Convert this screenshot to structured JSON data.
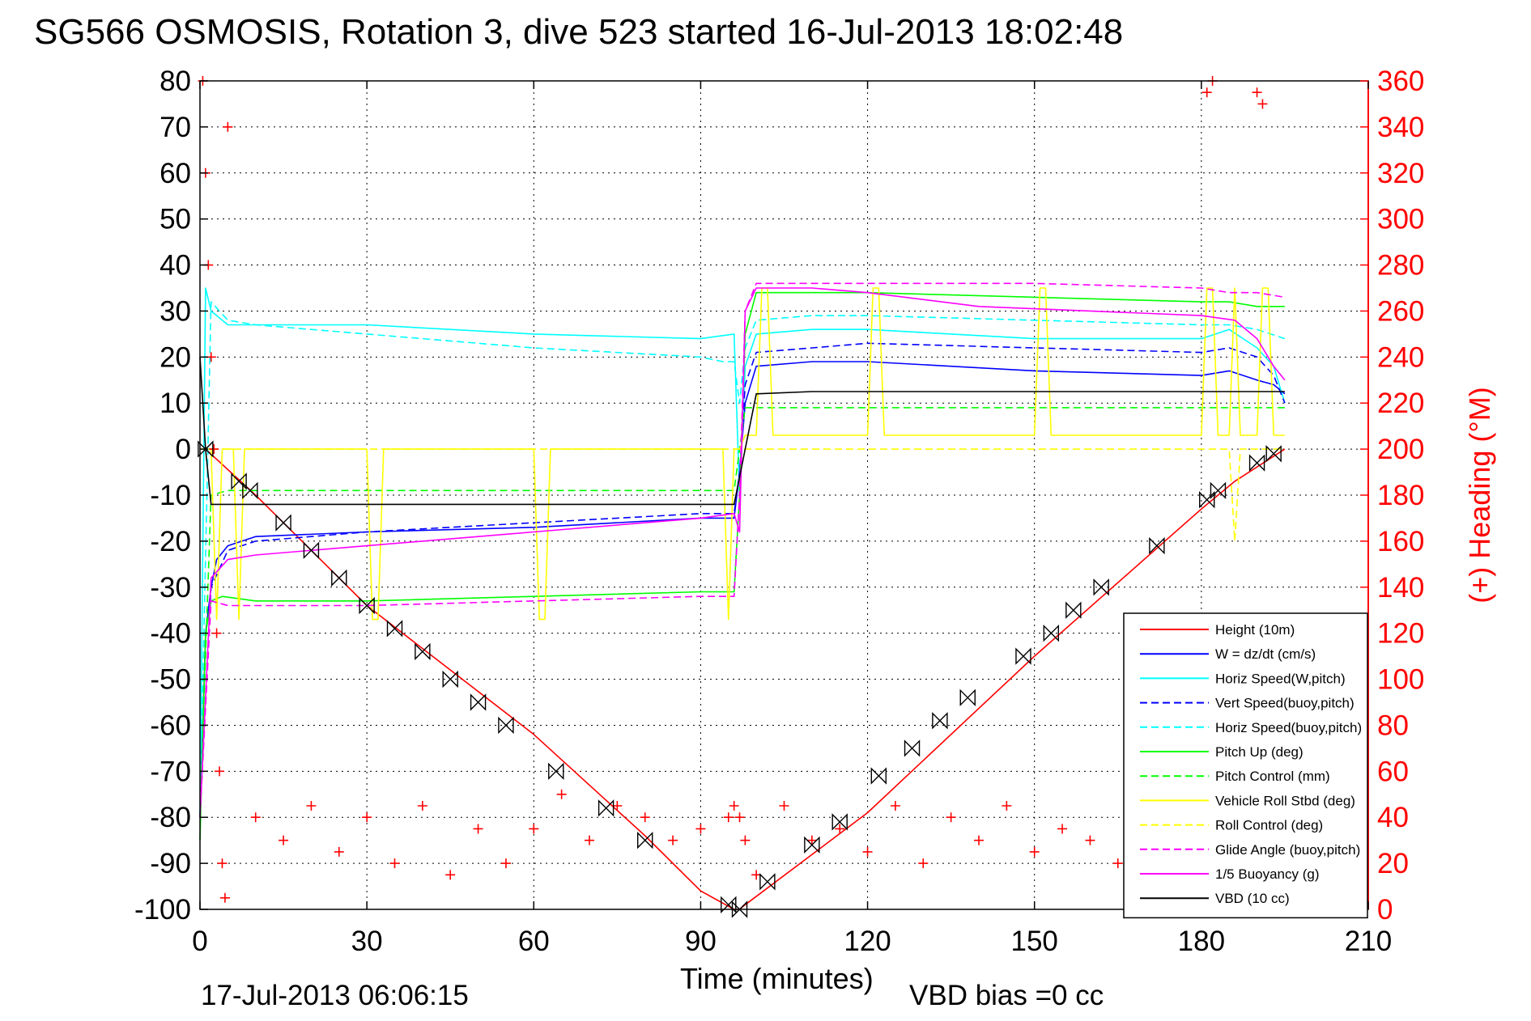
{
  "chart_data": {
    "type": "line",
    "title": "SG566 OSMOSIS, Rotation 3, dive 523 started 16-Jul-2013 18:02:48",
    "xlabel": "Time (minutes)",
    "ylabel": "",
    "y2label": "(+) Heading (°M)",
    "xlim": [
      0,
      210
    ],
    "ylim": [
      -100,
      80
    ],
    "y2lim": [
      0,
      360
    ],
    "xticks": [
      "0",
      "30",
      "60",
      "90",
      "120",
      "150",
      "180",
      "210"
    ],
    "yticks": [
      "80",
      "70",
      "60",
      "50",
      "40",
      "30",
      "20",
      "10",
      "0",
      "-10",
      "-20",
      "-30",
      "-40",
      "-50",
      "-60",
      "-70",
      "-80",
      "-90",
      "-100"
    ],
    "y2ticks": [
      "360",
      "340",
      "320",
      "300",
      "280",
      "260",
      "240",
      "220",
      "200",
      "180",
      "160",
      "140",
      "120",
      "100",
      "80",
      "60",
      "40",
      "20",
      "0"
    ],
    "grid": true,
    "legend_position": "bottom-right",
    "footer_left": "17-Jul-2013 06:06:15",
    "footer_right": "VBD bias =0 cc",
    "series": [
      {
        "name": "Height (10m)",
        "color": "#ff0000",
        "style": "solid",
        "x": [
          0,
          1,
          10,
          30,
          60,
          80,
          90,
          96,
          97,
          98,
          120,
          150,
          180,
          186,
          195
        ],
        "y": [
          0,
          0,
          -10,
          -34,
          -62,
          -84,
          -96,
          -100,
          -100,
          -99,
          -79,
          -45,
          -13,
          -7,
          0
        ]
      },
      {
        "name": "W = dz/dt (cm/s)",
        "color": "#0000ff",
        "style": "solid",
        "x": [
          0,
          1,
          2,
          3,
          5,
          10,
          30,
          60,
          90,
          96,
          97,
          98,
          100,
          110,
          120,
          150,
          180,
          185,
          190,
          193,
          195
        ],
        "y": [
          -80,
          -40,
          -30,
          -24,
          -21,
          -19,
          -18,
          -17,
          -15,
          -15,
          -5,
          10,
          18,
          19,
          19,
          17,
          16,
          17,
          15,
          14,
          12
        ]
      },
      {
        "name": "Horiz Speed(W,pitch)",
        "color": "#00ffff",
        "style": "solid",
        "x": [
          0,
          1,
          2,
          5,
          10,
          30,
          60,
          90,
          96,
          97,
          98,
          100,
          110,
          120,
          150,
          180,
          185,
          190,
          193,
          195
        ],
        "y": [
          -80,
          35,
          30,
          27,
          27,
          27,
          25,
          24,
          25,
          -10,
          18,
          25,
          26,
          26,
          24,
          24,
          26,
          22,
          18,
          10
        ]
      },
      {
        "name": "Vert Speed(buoy,pitch)",
        "color": "#0000ff",
        "style": "dashed",
        "x": [
          0,
          2,
          5,
          10,
          30,
          60,
          90,
          96,
          97,
          98,
          100,
          110,
          120,
          150,
          180,
          185,
          190,
          193,
          195
        ],
        "y": [
          -80,
          -30,
          -22,
          -20,
          -18,
          -16,
          -14,
          -14,
          -5,
          14,
          21,
          22,
          23,
          22,
          21,
          22,
          20,
          16,
          10
        ]
      },
      {
        "name": "Horiz Speed(buoy,pitch)",
        "color": "#00ffff",
        "style": "dashed",
        "x": [
          0,
          2,
          5,
          10,
          30,
          60,
          90,
          94,
          96,
          97,
          98,
          100,
          110,
          120,
          150,
          180,
          185,
          190,
          195
        ],
        "y": [
          -80,
          32,
          28,
          27,
          25,
          22,
          20,
          19,
          19,
          10,
          22,
          28,
          29,
          29,
          28,
          27,
          27,
          26,
          24
        ]
      },
      {
        "name": "Pitch Up (deg)",
        "color": "#00ff00",
        "style": "solid",
        "x": [
          0,
          1,
          2,
          4,
          10,
          30,
          60,
          90,
          96,
          97,
          98,
          100,
          110,
          120,
          150,
          180,
          185,
          190,
          195
        ],
        "y": [
          -85,
          -40,
          -33,
          -32,
          -33,
          -33,
          -32,
          -31,
          -31,
          -10,
          25,
          34,
          34,
          34,
          33,
          32,
          32,
          31,
          31
        ]
      },
      {
        "name": "Pitch Control (mm)",
        "color": "#00ff00",
        "style": "dashed",
        "x": [
          0,
          2,
          5,
          10,
          30,
          60,
          90,
          96,
          97,
          98,
          100,
          120,
          150,
          180,
          195
        ],
        "y": [
          -80,
          -10,
          -9,
          -9,
          -9,
          -9,
          -9,
          -9,
          0,
          9,
          9,
          9,
          9,
          9,
          9
        ]
      },
      {
        "name": "Vehicle Roll Stbd (deg)",
        "color": "#ffff00",
        "style": "solid",
        "x": [
          0,
          2,
          3,
          4,
          6,
          7,
          8,
          9,
          30,
          31,
          32,
          33,
          60,
          61,
          62,
          63,
          90,
          94,
          95,
          96,
          97,
          98,
          100,
          101,
          102,
          103,
          120,
          121,
          122,
          123,
          150,
          151,
          152,
          153,
          180,
          181,
          182,
          183,
          185,
          186,
          187,
          190,
          191,
          192,
          193,
          195
        ],
        "y": [
          0,
          0,
          -37,
          0,
          0,
          -37,
          0,
          0,
          0,
          -37,
          -37,
          0,
          0,
          -37,
          -37,
          0,
          0,
          0,
          -37,
          0,
          0,
          3,
          3,
          35,
          35,
          3,
          3,
          35,
          35,
          3,
          3,
          35,
          35,
          3,
          3,
          35,
          35,
          3,
          3,
          35,
          3,
          3,
          35,
          35,
          3,
          3
        ]
      },
      {
        "name": "Roll Control (deg)",
        "color": "#ffff00",
        "style": "dashed",
        "x": [
          0,
          2,
          5,
          10,
          30,
          60,
          90,
          96,
          97,
          98,
          100,
          120,
          150,
          180,
          185,
          186,
          187,
          195
        ],
        "y": [
          0,
          0,
          0,
          0,
          0,
          0,
          0,
          0,
          0,
          0,
          0,
          0,
          0,
          0,
          0,
          -20,
          0,
          0
        ]
      },
      {
        "name": "Glide Angle (buoy,pitch)",
        "color": "#ff00ff",
        "style": "dashed",
        "x": [
          0,
          2,
          5,
          10,
          30,
          60,
          90,
          96,
          97,
          98,
          100,
          110,
          120,
          150,
          180,
          185,
          190,
          195
        ],
        "y": [
          -80,
          -33,
          -34,
          -34,
          -34,
          -33,
          -32,
          -32,
          -10,
          30,
          36,
          36,
          36,
          36,
          35,
          34,
          34,
          33
        ]
      },
      {
        "name": "1/5 Buoyancy (g)",
        "color": "#ff00ff",
        "style": "solid",
        "x": [
          0,
          2,
          5,
          10,
          30,
          60,
          90,
          96,
          97,
          98,
          100,
          110,
          120,
          140,
          160,
          180,
          186,
          190,
          193,
          195
        ],
        "y": [
          -80,
          -28,
          -24,
          -23,
          -21,
          -18,
          -15,
          -14,
          -18,
          30,
          35,
          35,
          34,
          31,
          30,
          29,
          28,
          24,
          18,
          15
        ]
      },
      {
        "name": "VBD (10 cc)",
        "color": "#000000",
        "style": "solid",
        "x": [
          0,
          1,
          2,
          5,
          30,
          60,
          90,
          96,
          98,
          100,
          110,
          150,
          180,
          195
        ],
        "y": [
          20,
          0,
          -12,
          -12,
          -12,
          -12,
          -12,
          -12,
          0,
          12,
          12.5,
          12.5,
          12.5,
          12.5
        ]
      }
    ],
    "heading_series": {
      "name": "Heading",
      "color": "#ff0000",
      "marker": "+",
      "axis": "right",
      "x": [
        0.5,
        1,
        1.5,
        2,
        2.5,
        3,
        3.5,
        4,
        4.5,
        5,
        10,
        15,
        20,
        25,
        30,
        35,
        40,
        45,
        50,
        55,
        60,
        65,
        70,
        75,
        80,
        85,
        90,
        95,
        96,
        97,
        98,
        100,
        105,
        110,
        115,
        120,
        125,
        130,
        135,
        140,
        145,
        150,
        155,
        160,
        165,
        170,
        175,
        178,
        180,
        181,
        182,
        185,
        190,
        191
      ],
      "y": [
        360,
        320,
        280,
        240,
        200,
        120,
        60,
        20,
        5,
        340,
        40,
        30,
        45,
        25,
        40,
        20,
        45,
        15,
        35,
        20,
        35,
        50,
        30,
        45,
        40,
        30,
        35,
        40,
        45,
        40,
        30,
        15,
        45,
        30,
        35,
        25,
        45,
        20,
        40,
        30,
        45,
        25,
        35,
        30,
        20,
        40,
        30,
        15,
        5,
        355,
        360,
        30,
        355,
        350
      ]
    },
    "vbd_markers": {
      "name": "VBD markers",
      "color": "#000000",
      "marker": "bowtie",
      "x": [
        1,
        7,
        9,
        15,
        20,
        25,
        30,
        35,
        40,
        45,
        50,
        55,
        64,
        73,
        80,
        95,
        97,
        102,
        110,
        115,
        122,
        128,
        133,
        138,
        148,
        153,
        157,
        162,
        172,
        181,
        183,
        190,
        193
      ],
      "y": [
        0,
        -7,
        -9,
        -16,
        -22,
        -28,
        -34,
        -39,
        -44,
        -50,
        -55,
        -60,
        -70,
        -78,
        -85,
        -99,
        -100,
        -94,
        -86,
        -81,
        -71,
        -65,
        -59,
        -54,
        -45,
        -40,
        -35,
        -30,
        -21,
        -11,
        -9,
        -3,
        -1
      ]
    }
  }
}
